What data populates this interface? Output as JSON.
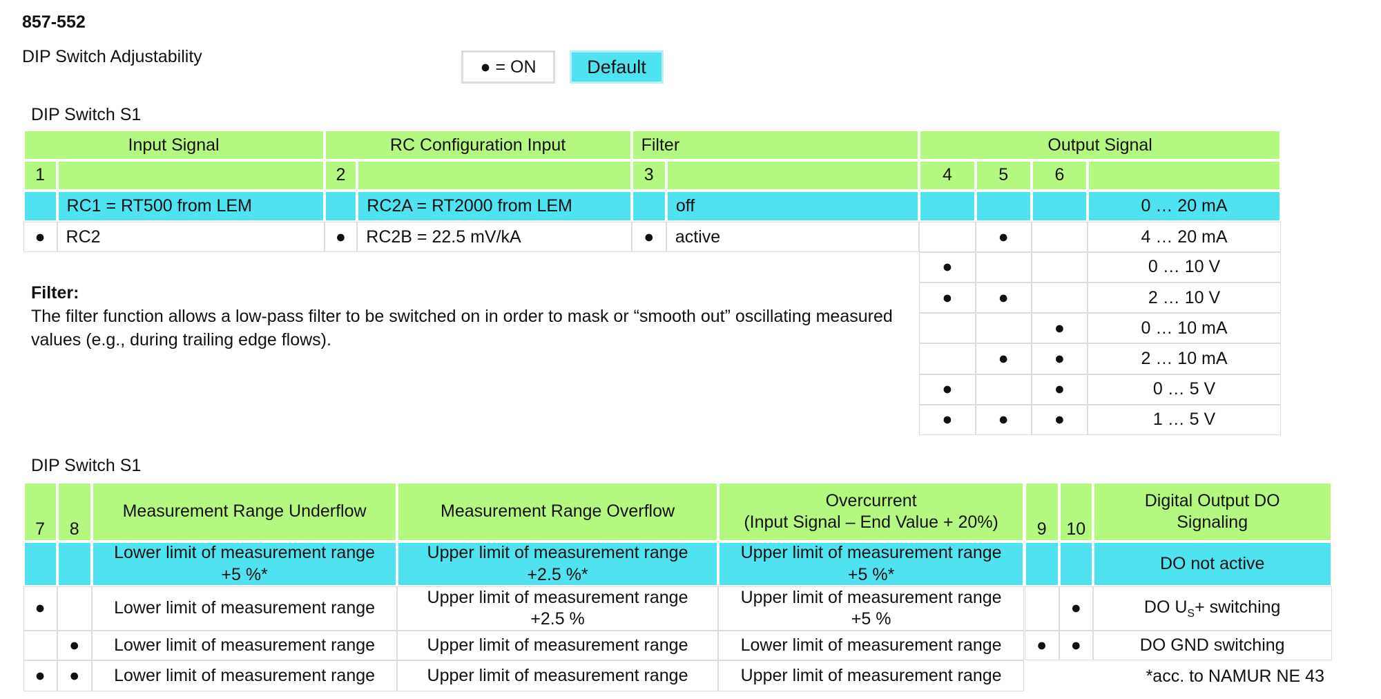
{
  "header": {
    "code": "857-552",
    "title": "DIP Switch Adjustability"
  },
  "legend": {
    "on": "● = ON",
    "default": "Default"
  },
  "table1": {
    "caption": "DIP Switch  S1",
    "groups": [
      "Input Signal",
      "RC Configuration Input",
      "Filter",
      "Output Signal"
    ],
    "switches": [
      "1",
      null,
      "2",
      null,
      "3",
      null,
      "4",
      "5",
      "6",
      null
    ],
    "rows": [
      [
        null,
        "RC1 = RT500 from LEM",
        null,
        "RC2A = RT2000 from LEM",
        null,
        "off",
        null,
        null,
        null,
        "0 … 20 mA"
      ],
      [
        "●",
        "RC2",
        "●",
        "RC2B = 22.5 mV/kA",
        "●",
        "active",
        null,
        "●",
        null,
        "4 … 20 mA"
      ]
    ],
    "output_rows": [
      [
        "●",
        null,
        null,
        "0 … 10 V"
      ],
      [
        "●",
        "●",
        null,
        "2 … 10 V"
      ],
      [
        null,
        null,
        "●",
        "0 … 10 mA"
      ],
      [
        null,
        "●",
        "●",
        "2 … 10 mA"
      ],
      [
        "●",
        null,
        "●",
        "0 … 5 V"
      ],
      [
        "●",
        "●",
        "●",
        "1 … 5 V"
      ]
    ]
  },
  "filter_note": {
    "title": "Filter:",
    "text": "The filter function allows a low-pass filter to be switched on in order to mask or “smooth out” oscillating measured values (e.g., during trailing edge flows)."
  },
  "table2": {
    "caption": "DIP Switch  S1",
    "header": [
      "7",
      "8",
      "Measurement Range Underflow",
      "Measurement Range Overflow",
      "Overcurrent\n(Input Signal – End Value + 20%)",
      "9",
      "10",
      "Digital Output DO\nSignaling"
    ],
    "rows": [
      [
        null,
        null,
        "Lower limit of measurement range\n+5 %*",
        "Upper limit of measurement range\n+2.5 %*",
        "Upper limit of measurement range\n+5 %*",
        null,
        null,
        "DO not active"
      ],
      [
        "●",
        null,
        "Lower limit of measurement range",
        "Upper limit of measurement range\n+2.5 %",
        "Upper limit of measurement range\n+5 %",
        null,
        "●",
        [
          "DO U",
          "S",
          "+ switching"
        ]
      ],
      [
        null,
        "●",
        "Lower limit of measurement range",
        "Upper limit of measurement range",
        "Lower limit of measurement range",
        "●",
        "●",
        "DO GND switching"
      ],
      [
        "●",
        "●",
        "Lower limit of measurement range",
        "Upper limit of measurement range",
        "Upper limit of measurement range"
      ]
    ],
    "footnote": "*acc. to NAMUR NE 43"
  }
}
